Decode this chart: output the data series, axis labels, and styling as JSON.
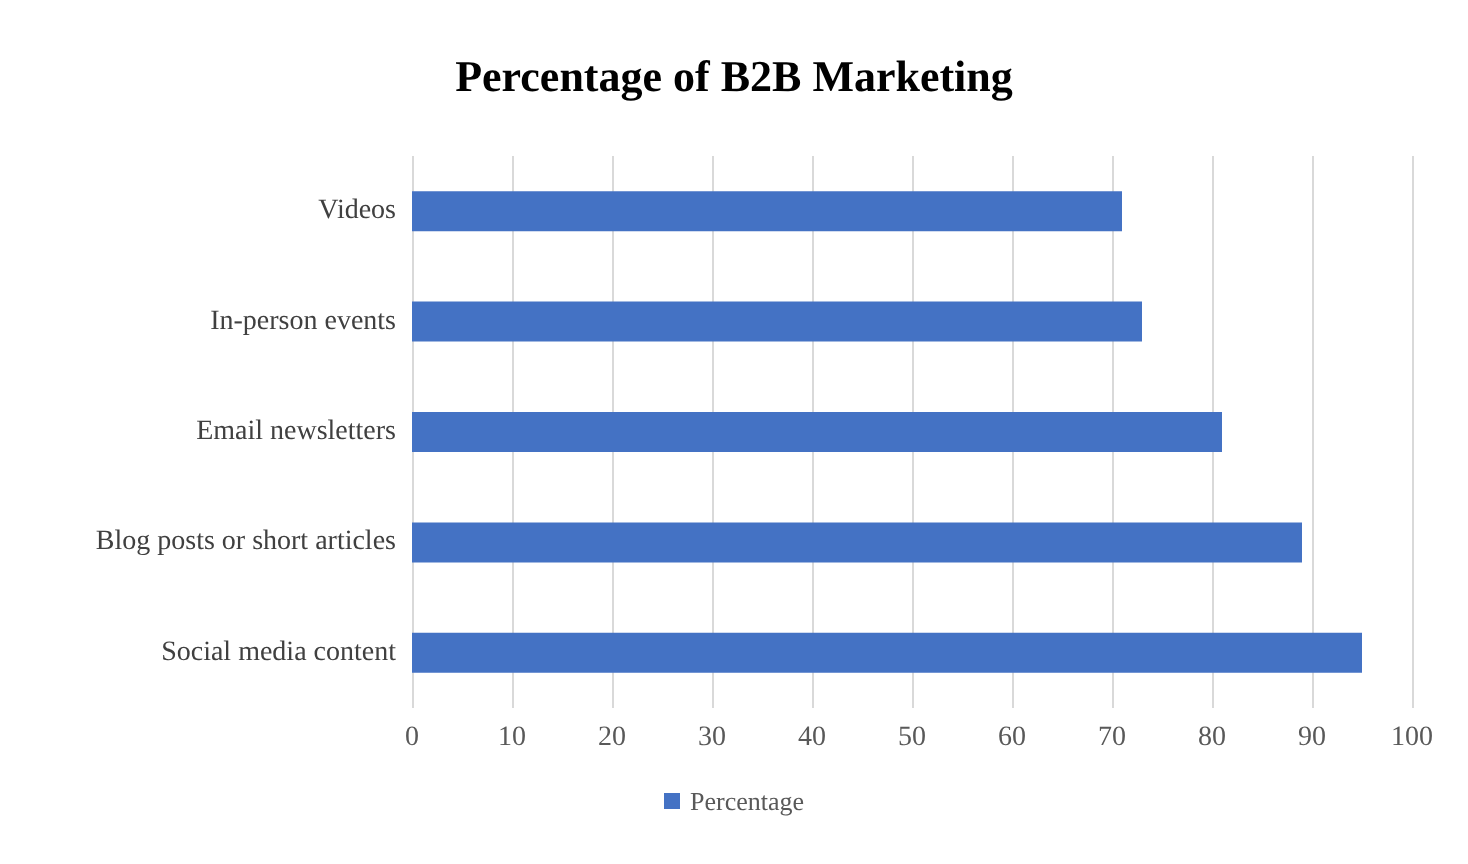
{
  "chart_data": {
    "type": "bar",
    "orientation": "horizontal",
    "title": "Percentage of B2B Marketing",
    "categories": [
      "Videos",
      "In-person events",
      "Email newsletters",
      "Blog posts or short articles",
      "Social media content"
    ],
    "series": [
      {
        "name": "Percentage",
        "color": "#4472c4",
        "values": [
          71,
          73,
          81,
          89,
          95
        ]
      }
    ],
    "xlim": [
      0,
      100
    ],
    "xticks": [
      0,
      10,
      20,
      30,
      40,
      50,
      60,
      70,
      80,
      90,
      100
    ],
    "grid": "x",
    "legend": "bottom"
  }
}
